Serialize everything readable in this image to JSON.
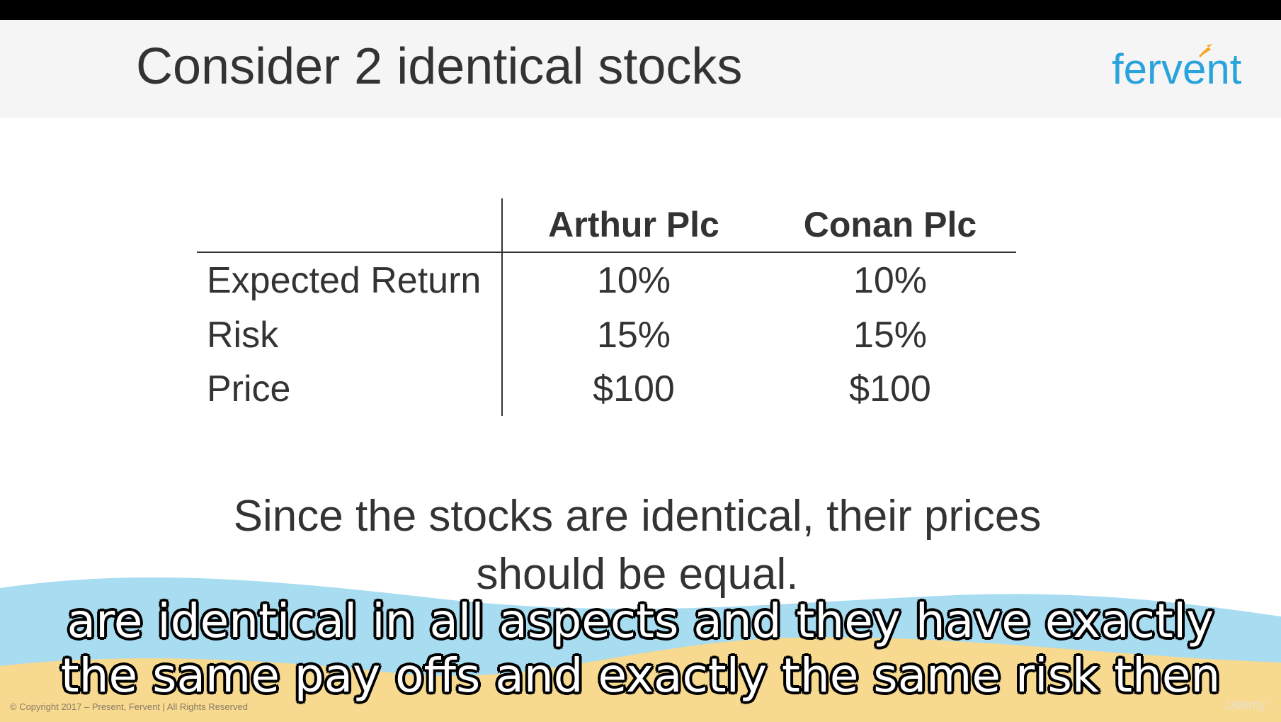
{
  "slide": {
    "title": "Consider 2 identical stocks",
    "logo_text": "fervent",
    "table": {
      "columns": [
        "Arthur Plc",
        "Conan Plc"
      ],
      "rows": [
        {
          "label": "Expected Return",
          "values": [
            "10%",
            "10%"
          ]
        },
        {
          "label": "Risk",
          "values": [
            "15%",
            "15%"
          ]
        },
        {
          "label": "Price",
          "values": [
            "$100",
            "$100"
          ]
        }
      ]
    },
    "note_line1": "Since the stocks are identical, their prices",
    "note_line2": "should be equal.",
    "copyright": "© Copyright 2017 – Present,  Fervent | All Rights Reserved"
  },
  "captions": {
    "line1": "are identical in all aspects and they have exactly",
    "line2": "the same pay offs and exactly the same risk then"
  },
  "watermark": "Udemy",
  "colors": {
    "logo": "#2aa3dc",
    "logo_arrow": "#f5a623",
    "title_bar": "#f5f5f5",
    "wave_blue": "#a8dcf0",
    "wave_sand": "#f7d98f"
  }
}
